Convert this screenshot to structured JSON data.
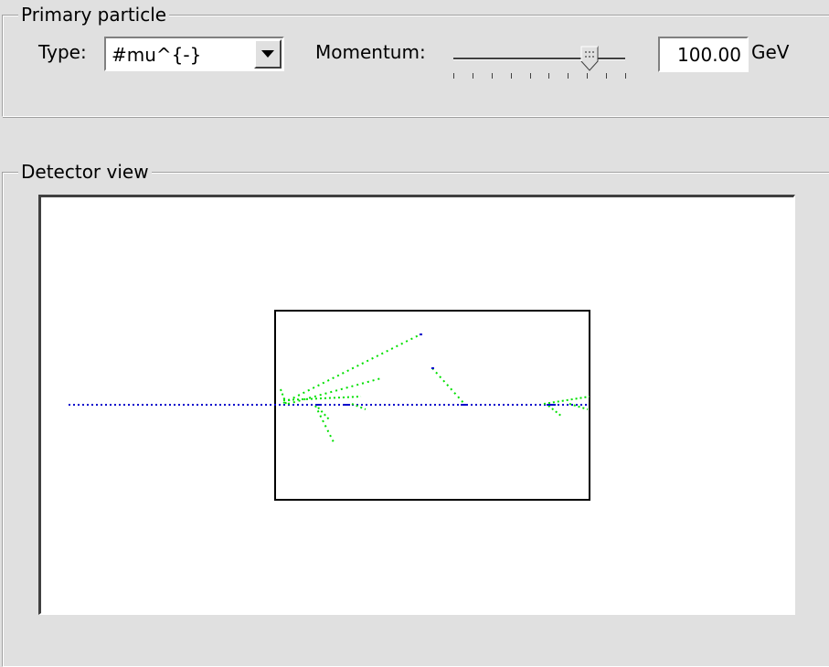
{
  "primary_particle": {
    "title": "Primary particle",
    "type_label": "Type:",
    "type_value": "#mu^{-}",
    "momentum_label": "Momentum:",
    "momentum_value": "100.00",
    "momentum_unit": "GeV",
    "slider_tick_count": 10
  },
  "detector_view": {
    "title": "Detector view"
  },
  "colors": {
    "primary_track": "#0000cc",
    "secondary_tracks": "#00e000",
    "window_bg": "#e0e0e0"
  }
}
